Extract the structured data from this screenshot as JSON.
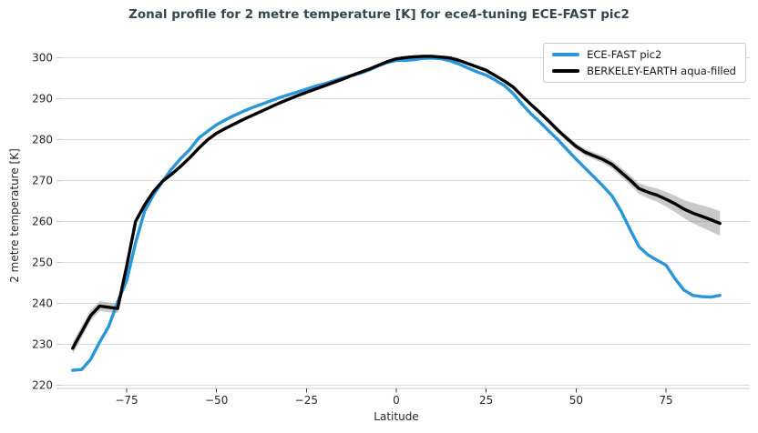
{
  "figure": {
    "title": "Zonal profile for 2 metre temperature [K] for ece4-tuning ECE-FAST pic2",
    "title_color": "#31484e"
  },
  "chart_data": {
    "type": "line",
    "title": "Zonal profile for 2 metre temperature [K] for ece4-tuning ECE-FAST pic2",
    "xlabel": "Latitude",
    "ylabel": "2 metre temperature [K]",
    "xlim": [
      -93,
      98
    ],
    "ylim": [
      219,
      304
    ],
    "xticks": [
      -75,
      -50,
      -25,
      0,
      25,
      50,
      75
    ],
    "yticks": [
      220,
      230,
      240,
      250,
      260,
      270,
      280,
      290,
      300
    ],
    "grid": "horizontal-only",
    "grid_color": "#d9d9d9",
    "legend_position": "upper right",
    "x": [
      -90,
      -87.5,
      -85,
      -82.5,
      -80,
      -77.5,
      -75,
      -72.5,
      -70,
      -67.5,
      -65,
      -62.5,
      -60,
      -57.5,
      -55,
      -52.5,
      -50,
      -47.5,
      -45,
      -42.5,
      -40,
      -37.5,
      -35,
      -32.5,
      -30,
      -27.5,
      -25,
      -22.5,
      -20,
      -17.5,
      -15,
      -12.5,
      -10,
      -7.5,
      -5,
      -2.5,
      0,
      2.5,
      5,
      7.5,
      10,
      12.5,
      15,
      17.5,
      20,
      22.5,
      25,
      27.5,
      30,
      32.5,
      35,
      37.5,
      40,
      42.5,
      45,
      47.5,
      50,
      52.5,
      55,
      57.5,
      60,
      62.5,
      65,
      67.5,
      70,
      72.5,
      75,
      77.5,
      80,
      82.5,
      85,
      87.5,
      90
    ],
    "series": [
      {
        "name": "ECE-FAST pic2",
        "color": "#2a96d8",
        "linewidth": 3.4,
        "values": [
          223.6,
          223.8,
          226.3,
          230.5,
          234.3,
          240.3,
          245.5,
          254.8,
          262.5,
          266.5,
          269.8,
          272.8,
          275.3,
          277.5,
          280.3,
          282.0,
          283.6,
          284.8,
          285.9,
          286.9,
          287.8,
          288.6,
          289.4,
          290.2,
          290.9,
          291.6,
          292.3,
          293.0,
          293.6,
          294.3,
          295.0,
          295.6,
          296.2,
          297.0,
          298.0,
          298.8,
          299.3,
          299.3,
          299.5,
          299.8,
          299.9,
          299.7,
          299.2,
          298.4,
          297.4,
          296.5,
          295.7,
          294.5,
          293.2,
          291.2,
          288.6,
          286.2,
          284.2,
          282.0,
          279.9,
          277.5,
          275.2,
          273.0,
          270.8,
          268.6,
          266.2,
          262.5,
          258.0,
          253.8,
          251.8,
          250.5,
          249.3,
          246.0,
          243.2,
          241.9,
          241.6,
          241.5,
          241.9
        ]
      },
      {
        "name": "BERKELEY-EARTH aqua-filled",
        "color": "#000000",
        "linewidth": 3.4,
        "band_color": "#7f7f7f",
        "band_opacity": 0.42,
        "values": [
          229.0,
          233.0,
          237.0,
          239.3,
          239.0,
          238.7,
          249.0,
          260.0,
          264.0,
          267.3,
          269.8,
          271.5,
          273.4,
          275.5,
          277.8,
          279.9,
          281.5,
          282.7,
          283.8,
          284.9,
          285.9,
          286.9,
          287.9,
          288.9,
          289.8,
          290.7,
          291.5,
          292.3,
          293.1,
          293.9,
          294.7,
          295.6,
          296.4,
          297.2,
          298.1,
          299.0,
          299.7,
          300.0,
          300.2,
          300.3,
          300.3,
          300.1,
          299.9,
          299.3,
          298.5,
          297.7,
          296.9,
          295.6,
          294.3,
          292.8,
          290.6,
          288.5,
          286.5,
          284.4,
          282.2,
          280.2,
          278.3,
          276.9,
          276.0,
          275.1,
          273.9,
          272.0,
          270.1,
          268.0,
          267.1,
          266.4,
          265.4,
          264.3,
          263.0,
          262.0,
          261.2,
          260.4,
          259.5
        ],
        "band_halfwidth": [
          1.5,
          1.4,
          1.3,
          1.2,
          1.2,
          1.1,
          0.9,
          0.8,
          0.7,
          0.6,
          0.5,
          0.5,
          0.45,
          0.4,
          0.4,
          0.4,
          0.4,
          0.4,
          0.4,
          0.4,
          0.4,
          0.4,
          0.4,
          0.4,
          0.4,
          0.4,
          0.4,
          0.4,
          0.4,
          0.4,
          0.4,
          0.4,
          0.4,
          0.4,
          0.4,
          0.4,
          0.4,
          0.4,
          0.4,
          0.4,
          0.4,
          0.4,
          0.4,
          0.4,
          0.4,
          0.4,
          0.4,
          0.4,
          0.4,
          0.45,
          0.5,
          0.5,
          0.55,
          0.6,
          0.65,
          0.7,
          0.75,
          0.8,
          0.85,
          0.9,
          1.0,
          1.1,
          1.2,
          1.3,
          1.45,
          1.6,
          1.8,
          2.0,
          2.2,
          2.5,
          2.7,
          2.9,
          3.0
        ]
      }
    ]
  }
}
